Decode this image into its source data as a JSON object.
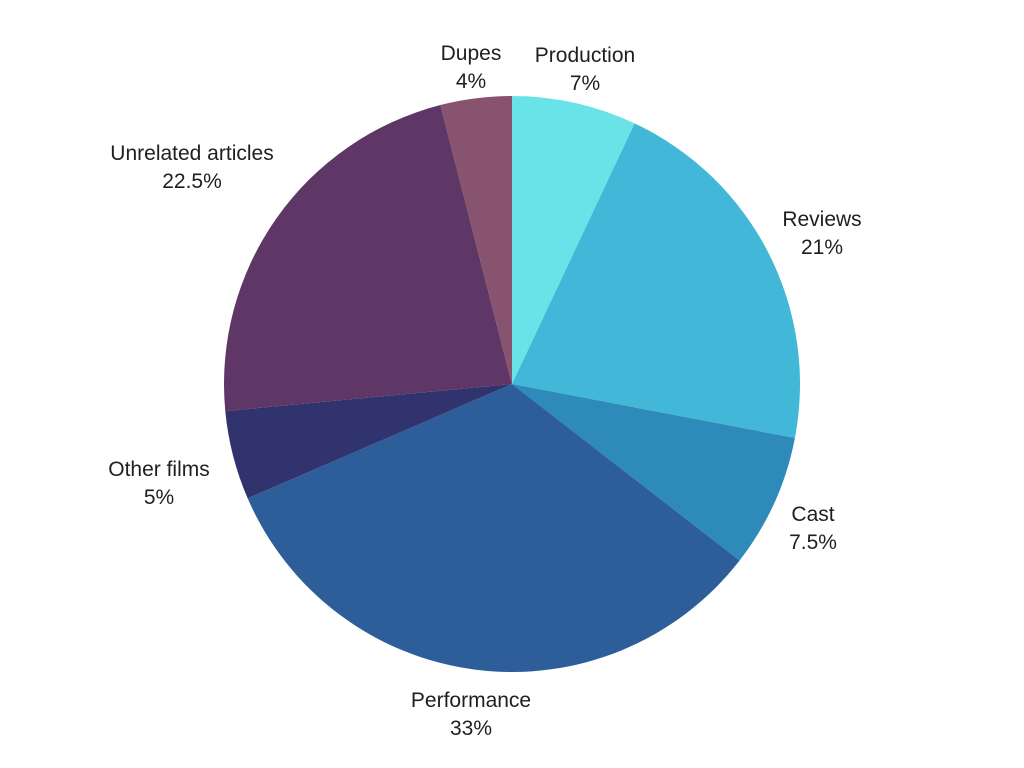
{
  "chart_data": {
    "type": "pie",
    "title": "",
    "slices": [
      {
        "label": "Production",
        "value": 7,
        "display": "7%",
        "color": "#69E3E8"
      },
      {
        "label": "Reviews",
        "value": 21,
        "display": "21%",
        "color": "#42B7D7"
      },
      {
        "label": "Cast",
        "value": 7.5,
        "display": "7.5%",
        "color": "#2D8AB9"
      },
      {
        "label": "Performance",
        "value": 33,
        "display": "33%",
        "color": "#2D5E9A"
      },
      {
        "label": "Other films",
        "value": 5,
        "display": "5%",
        "color": "#30336D"
      },
      {
        "label": "Unrelated articles",
        "value": 22.5,
        "display": "22.5%",
        "color": "#5E3766"
      },
      {
        "label": "Dupes",
        "value": 4,
        "display": "4%",
        "color": "#87536F"
      }
    ],
    "start_angle": "12 o'clock",
    "direction": "clockwise",
    "legend": "none"
  }
}
